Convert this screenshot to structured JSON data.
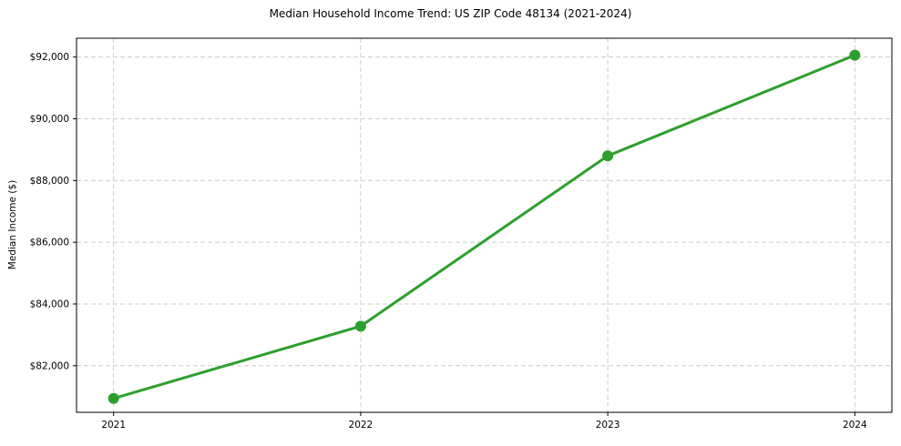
{
  "chart_data": {
    "type": "line",
    "title": "Median Household Income Trend: US ZIP Code 48134 (2021-2024)",
    "xlabel": "",
    "ylabel": "Median Income ($)",
    "x": [
      2021,
      2022,
      2023,
      2024
    ],
    "x_tick_labels": [
      "2021",
      "2022",
      "2023",
      "2024"
    ],
    "y_ticks": [
      82000,
      84000,
      86000,
      88000,
      90000,
      92000
    ],
    "y_tick_labels": [
      "$82,000",
      "$84,000",
      "$86,000",
      "$88,000",
      "$90,000",
      "$92,000"
    ],
    "series": [
      {
        "name": "Median Household Income",
        "values": [
          80940,
          83280,
          88800,
          92060
        ]
      }
    ],
    "xlim": [
      2020.85,
      2024.15
    ],
    "ylim": [
      80490,
      92610
    ],
    "grid": true,
    "grid_style": "dashed",
    "legend": false,
    "colors": {
      "line": "#2ca02c",
      "marker": "#2ca02c",
      "grid": "#cccccc",
      "frame": "#000000",
      "background": "#ffffff",
      "text": "#000000"
    }
  }
}
